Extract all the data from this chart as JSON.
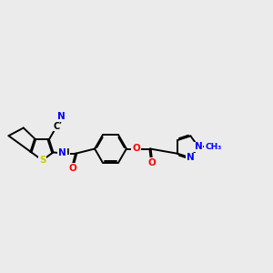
{
  "background_color": "#ebebeb",
  "figsize": [
    3.0,
    3.0
  ],
  "dpi": 100,
  "bond_color": "#000000",
  "bond_width": 1.4,
  "atom_colors": {
    "N": "#0000ff",
    "O": "#ff0000",
    "S": "#cccc00",
    "C": "#000000"
  },
  "font_size": 7.5,
  "xlim": [
    0,
    10
  ],
  "ylim": [
    1,
    7
  ]
}
